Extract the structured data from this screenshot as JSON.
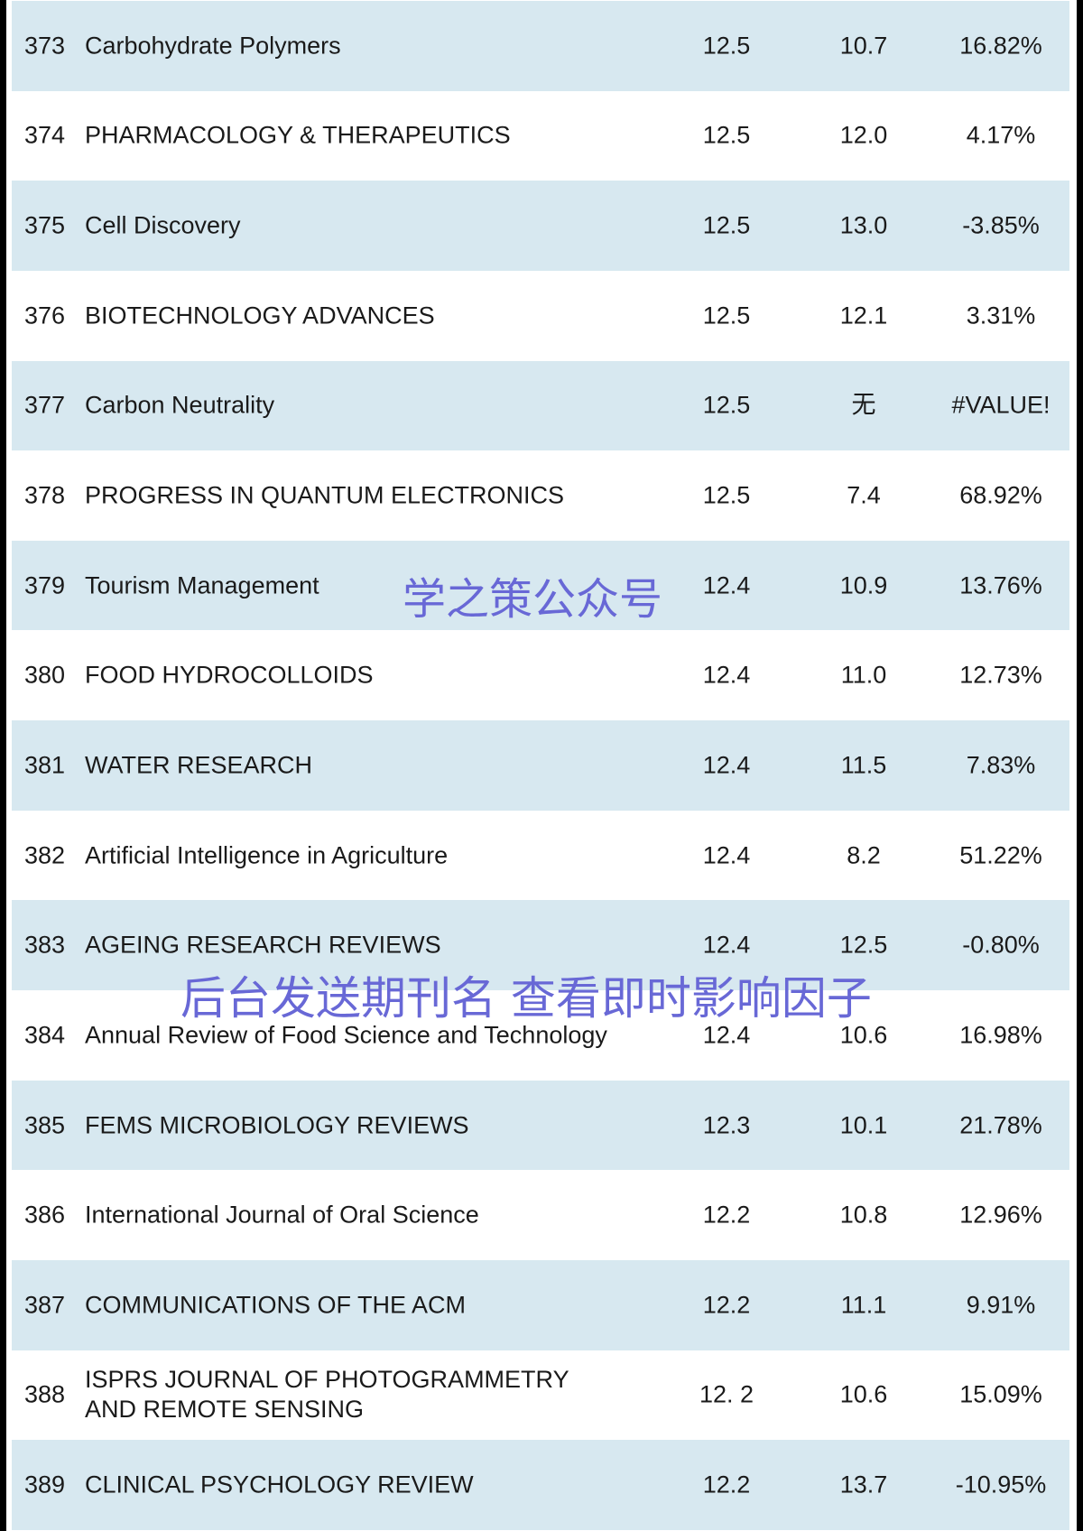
{
  "rows": [
    {
      "rank": "373",
      "name": "Carbohydrate Polymers",
      "if": "12.5",
      "prev": "10.7",
      "change": "16.82%"
    },
    {
      "rank": "374",
      "name": "PHARMACOLOGY & THERAPEUTICS",
      "if": "12.5",
      "prev": "12.0",
      "change": "4.17%"
    },
    {
      "rank": "375",
      "name": "Cell Discovery",
      "if": "12.5",
      "prev": "13.0",
      "change": "-3.85%"
    },
    {
      "rank": "376",
      "name": "BIOTECHNOLOGY ADVANCES",
      "if": "12.5",
      "prev": "12.1",
      "change": "3.31%"
    },
    {
      "rank": "377",
      "name": "Carbon Neutrality",
      "if": "12.5",
      "prev": "无",
      "change": "#VALUE!"
    },
    {
      "rank": "378",
      "name": "PROGRESS IN QUANTUM ELECTRONICS",
      "if": "12.5",
      "prev": "7.4",
      "change": "68.92%"
    },
    {
      "rank": "379",
      "name": "Tourism Management",
      "if": "12.4",
      "prev": "10.9",
      "change": "13.76%"
    },
    {
      "rank": "380",
      "name": "FOOD HYDROCOLLOIDS",
      "if": "12.4",
      "prev": "11.0",
      "change": "12.73%"
    },
    {
      "rank": "381",
      "name": "WATER RESEARCH",
      "if": "12.4",
      "prev": "11.5",
      "change": "7.83%"
    },
    {
      "rank": "382",
      "name": "Artificial Intelligence in Agriculture",
      "if": "12.4",
      "prev": "8.2",
      "change": "51.22%"
    },
    {
      "rank": "383",
      "name": "AGEING RESEARCH REVIEWS",
      "if": "12.4",
      "prev": "12.5",
      "change": "-0.80%"
    },
    {
      "rank": "384",
      "name": "Annual Review of Food Science and Technology",
      "if": "12.4",
      "prev": "10.6",
      "change": "16.98%"
    },
    {
      "rank": "385",
      "name": "FEMS MICROBIOLOGY REVIEWS",
      "if": "12.3",
      "prev": "10.1",
      "change": "21.78%"
    },
    {
      "rank": "386",
      "name": "International Journal of Oral Science",
      "if": "12.2",
      "prev": "10.8",
      "change": "12.96%"
    },
    {
      "rank": "387",
      "name": "COMMUNICATIONS OF THE ACM",
      "if": "12.2",
      "prev": "11.1",
      "change": "9.91%"
    },
    {
      "rank": "388",
      "name": "ISPRS JOURNAL OF PHOTOGRAMMETRY",
      "name2": "AND REMOTE SENSING",
      "if": "12. 2",
      "prev": "10.6",
      "change": "15.09%"
    },
    {
      "rank": "389",
      "name": "CLINICAL PSYCHOLOGY REVIEW",
      "if": "12.2",
      "prev": "13.7",
      "change": "-10.95%"
    }
  ],
  "watermarks": {
    "account": "学之策公众号",
    "instruction": "后台发送期刊名 查看即时影响因子"
  },
  "colors": {
    "row_shade": "#d7e8f0",
    "watermark": "#6868d6"
  }
}
